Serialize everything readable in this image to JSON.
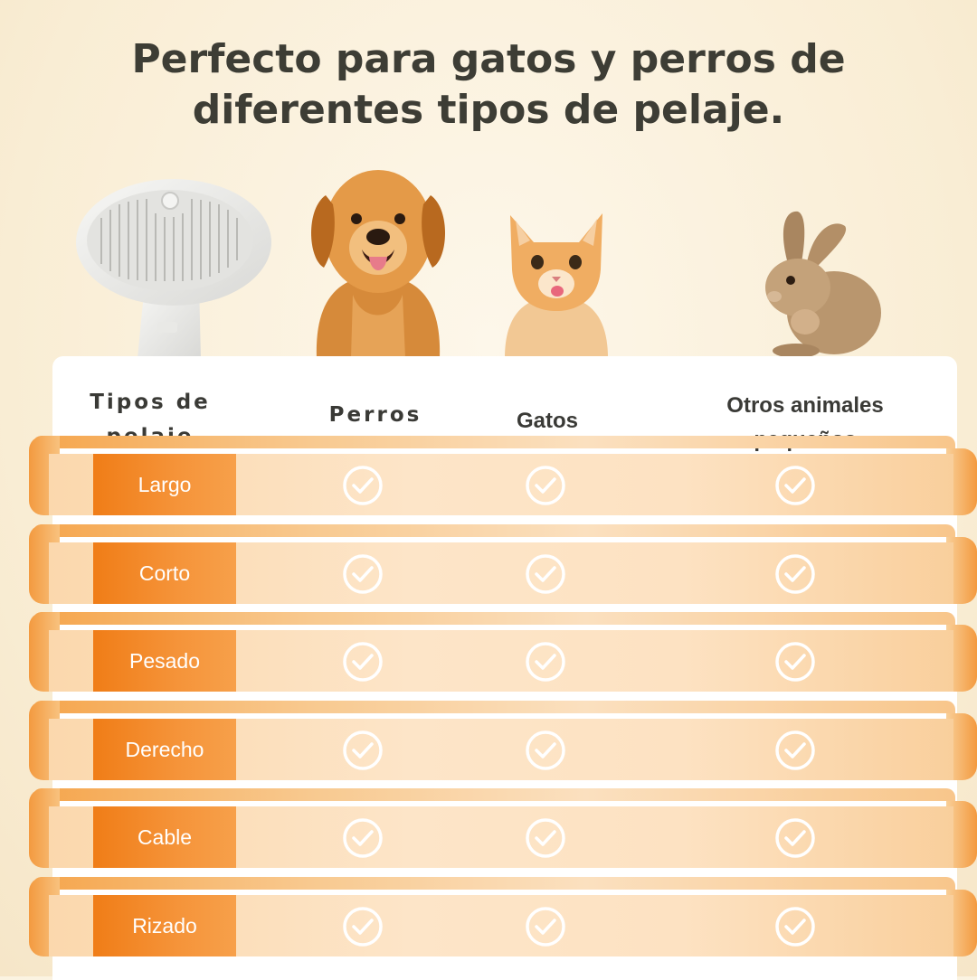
{
  "headline": {
    "line1": "Perfecto para gatos y perros de",
    "line2": "diferentes tipos de pelaje."
  },
  "table": {
    "headers": {
      "type_line1": "Tipos de",
      "type_line2": "pelaje",
      "dogs": "Perros",
      "cats": "Gatos",
      "other_line1": "Otros animales",
      "other_line2": "pequeños"
    },
    "rows": [
      {
        "label": "Largo",
        "dogs": true,
        "cats": true,
        "other": true
      },
      {
        "label": "Corto",
        "dogs": true,
        "cats": true,
        "other": true
      },
      {
        "label": "Pesado",
        "dogs": true,
        "cats": true,
        "other": true
      },
      {
        "label": "Derecho",
        "dogs": true,
        "cats": true,
        "other": true
      },
      {
        "label": "Cable",
        "dogs": true,
        "cats": true,
        "other": true
      },
      {
        "label": "Rizado",
        "dogs": true,
        "cats": true,
        "other": true
      }
    ]
  },
  "icons": {
    "check": "check-circle-icon",
    "brush": "grooming-brush-icon"
  },
  "colors": {
    "accent_orange": "#f07d17",
    "band_peach": "#fde5c8",
    "headline_text": "#3d3d35"
  }
}
